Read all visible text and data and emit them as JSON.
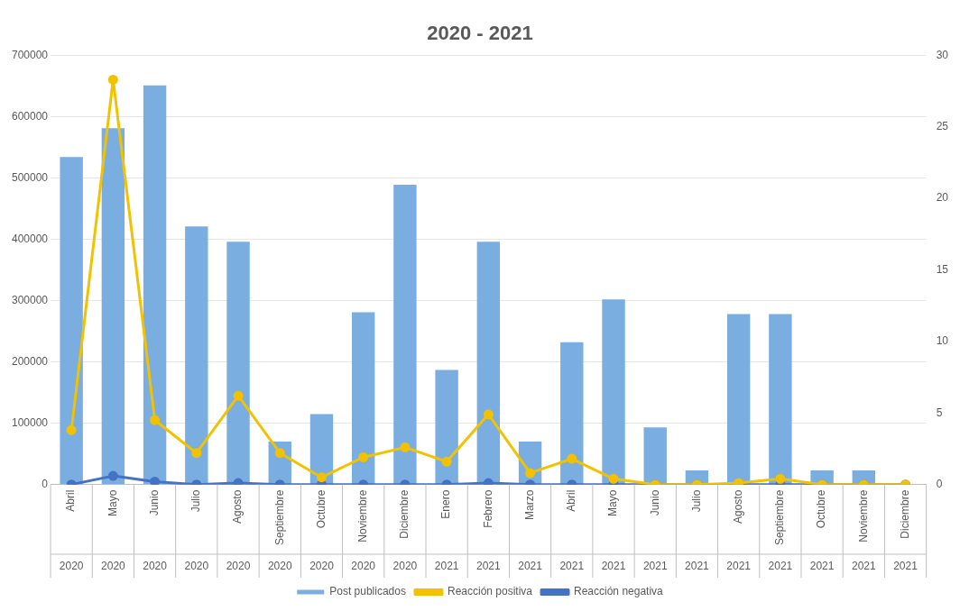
{
  "chart_data": {
    "type": "bar",
    "title": "2020 - 2021",
    "categories": [
      "Abril\n2020",
      "Mayo\n2020",
      "Junio\n2020",
      "Julio\n2020",
      "Agosto\n2020",
      "Septiembre\n2020",
      "Octubre\n2020",
      "Noviembre\n2020",
      "Diciembre\n2020",
      "Enero\n2021",
      "Febrero\n2021",
      "Marzo\n2021",
      "Abril\n2021",
      "Mayo\n2021",
      "Junio\n2021",
      "Julio\n2021",
      "Agosto\n2021",
      "Septiembre\n2021",
      "Octubre\n2021",
      "Noviembre\n2021",
      "Diciembre\n2021"
    ],
    "series": [
      {
        "name": "Post publicados",
        "color": "#7aaee0",
        "values": [
          534000,
          581000,
          651000,
          421000,
          396000,
          70000,
          115000,
          281000,
          489000,
          187000,
          396000,
          70000,
          232000,
          302000,
          93000,
          23000,
          278000,
          278000,
          23000,
          23000,
          0
        ]
      },
      {
        "name": "Reacción positiva",
        "type": "line",
        "axis": "y2",
        "color": "#f2c200",
        "values": [
          3.8,
          28.3,
          4.5,
          2.2,
          6.2,
          2.2,
          0.5,
          1.9,
          2.6,
          1.6,
          4.9,
          0.8,
          1.8,
          0.4,
          0,
          0,
          0.1,
          0.4,
          0,
          0,
          0
        ]
      },
      {
        "name": "Reacción negativa",
        "type": "line",
        "axis": "y2",
        "color": "#4472c4",
        "values": [
          0,
          0.6,
          0.2,
          0,
          0.1,
          0,
          0,
          0,
          0,
          0,
          0.1,
          0,
          0,
          0,
          0,
          0,
          0,
          0,
          0,
          0,
          0
        ]
      }
    ],
    "ylim": [
      0,
      700000
    ],
    "yticks": [
      0,
      100000,
      200000,
      300000,
      400000,
      500000,
      600000,
      700000
    ],
    "y2lim": [
      0,
      30
    ],
    "y2ticks": [
      0,
      5,
      10,
      15,
      20,
      25,
      30
    ],
    "grid": "y",
    "legend": "bottom",
    "marker": "circle"
  }
}
